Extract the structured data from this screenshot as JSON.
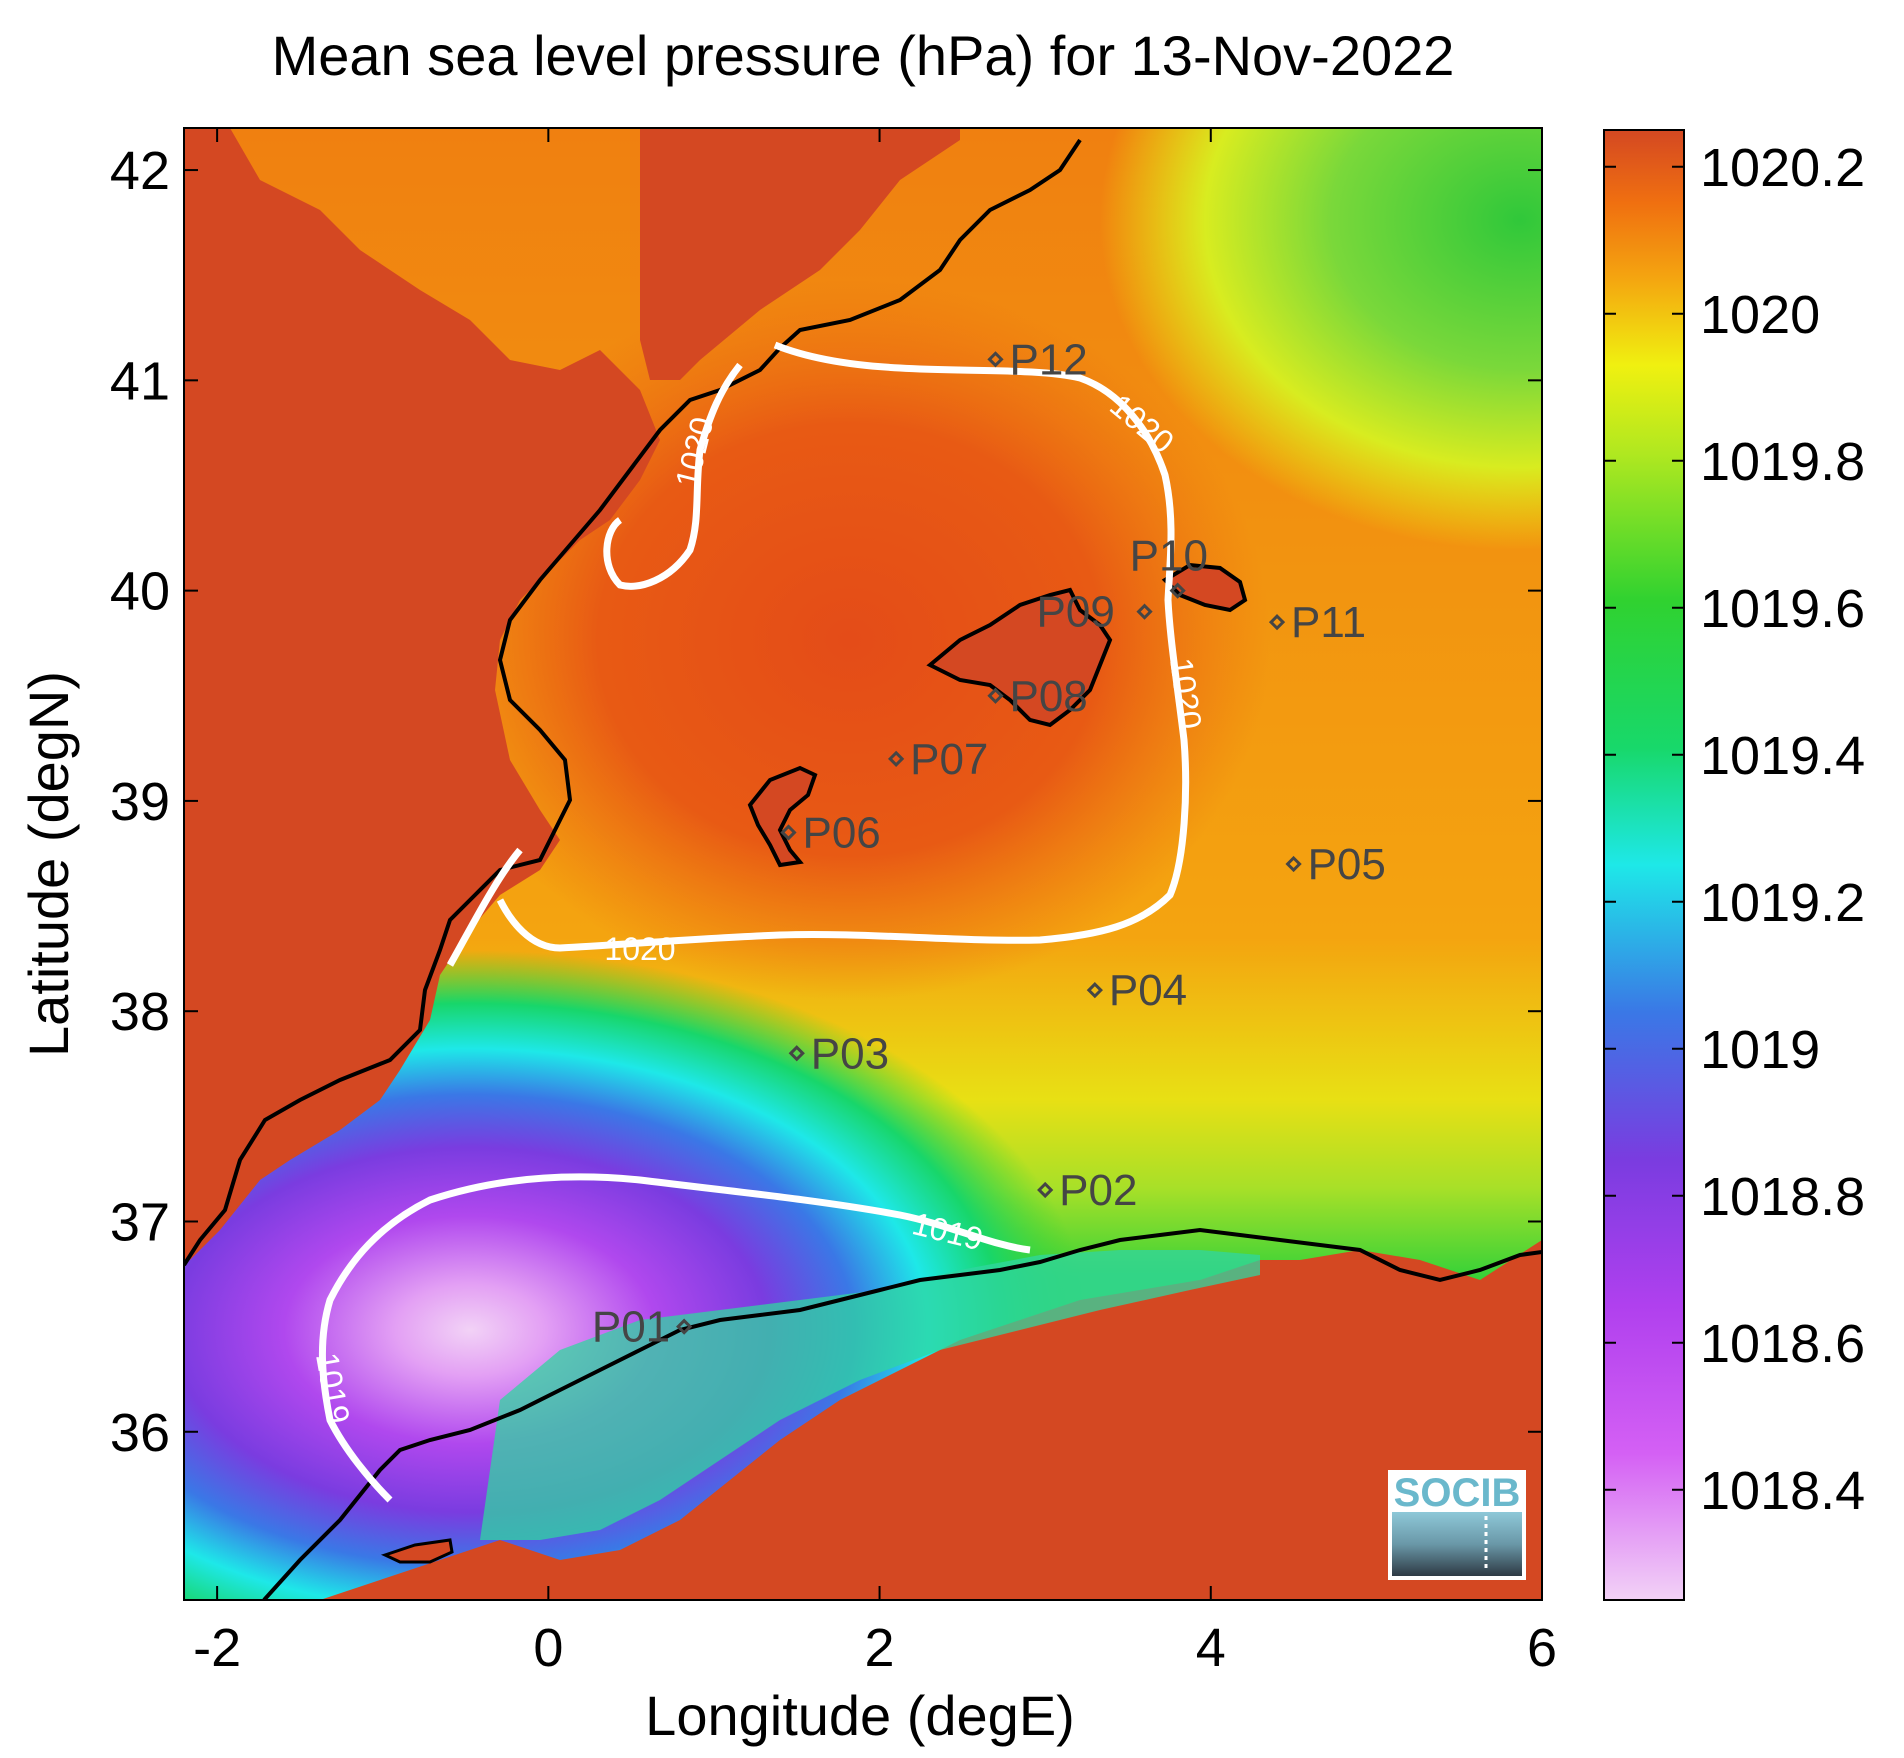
{
  "chart_data": {
    "type": "heatmap",
    "title": "Mean sea level pressure (hPa) for 13-Nov-2022",
    "xlabel": "Longitude (degE)",
    "ylabel": "Latitude (degN)",
    "xlim": [
      -2.2,
      6.0
    ],
    "ylim": [
      35.2,
      42.2
    ],
    "xticks": [
      -2,
      0,
      2,
      4,
      6
    ],
    "yticks": [
      36,
      37,
      38,
      39,
      40,
      41,
      42
    ],
    "colorbar": {
      "range": [
        1018.25,
        1020.25
      ],
      "ticks": [
        "1018.4",
        "1018.6",
        "1018.8",
        "1019",
        "1019.2",
        "1019.4",
        "1019.6",
        "1019.8",
        "1020",
        "1020.2"
      ],
      "tick_values": [
        1018.4,
        1018.6,
        1018.8,
        1019.0,
        1019.2,
        1019.4,
        1019.6,
        1019.8,
        1020.0,
        1020.2
      ],
      "colormap": [
        "#f2d2f6",
        "#c63cf0",
        "#7a3ce0",
        "#3a78e6",
        "#1ee8e8",
        "#18d66a",
        "#30d230",
        "#e8f010",
        "#f08010",
        "#d44822"
      ]
    },
    "contours": [
      {
        "level": "1020",
        "label": "1020"
      },
      {
        "level": "1019",
        "label": "1019"
      }
    ],
    "stations": [
      {
        "name": "P01",
        "lon": 0.82,
        "lat": 36.5
      },
      {
        "name": "P02",
        "lon": 3.0,
        "lat": 37.15
      },
      {
        "name": "P03",
        "lon": 1.5,
        "lat": 37.8
      },
      {
        "name": "P04",
        "lon": 3.3,
        "lat": 38.1
      },
      {
        "name": "P05",
        "lon": 4.5,
        "lat": 38.7
      },
      {
        "name": "P06",
        "lon": 1.45,
        "lat": 38.85
      },
      {
        "name": "P07",
        "lon": 2.1,
        "lat": 39.2
      },
      {
        "name": "P08",
        "lon": 2.7,
        "lat": 39.5
      },
      {
        "name": "P09",
        "lon": 3.6,
        "lat": 39.9
      },
      {
        "name": "P10",
        "lon": 3.8,
        "lat": 40.0
      },
      {
        "name": "P11",
        "lon": 4.4,
        "lat": 39.85
      },
      {
        "name": "P12",
        "lon": 2.7,
        "lat": 41.1
      }
    ],
    "logo_text": "SOCIB",
    "colors": {
      "land": "#d44822",
      "coastline": "#000000",
      "contour": "#ffffff",
      "station": "#454545"
    }
  }
}
